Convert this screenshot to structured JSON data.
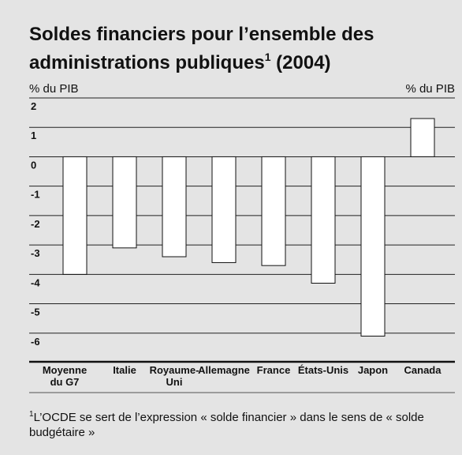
{
  "chart_data": {
    "type": "bar",
    "title": "Soldes financiers pour l’ensemble des administrations publiques",
    "title_note": "1",
    "title_year": "(2004)",
    "ylabel_left": "% du PIB",
    "ylabel_right": "% du PIB",
    "categories": [
      "Moyenne du G7",
      "Italie",
      "Royaume-Uni",
      "Allemagne",
      "France",
      "États-Unis",
      "Japon",
      "Canada"
    ],
    "values": [
      -4.0,
      -3.1,
      -3.4,
      -3.6,
      -3.7,
      -4.3,
      -6.1,
      1.3
    ],
    "color": "#ffffff",
    "ylim": [
      -7,
      2
    ],
    "yticks": [
      2,
      1,
      0,
      -1,
      -2,
      -3,
      -4,
      -5,
      -6
    ],
    "grid": true,
    "footnote_marker": "1",
    "footnote": "L’OCDE se sert de l’expression « solde financier » dans le sens de « solde budgétaire »"
  }
}
